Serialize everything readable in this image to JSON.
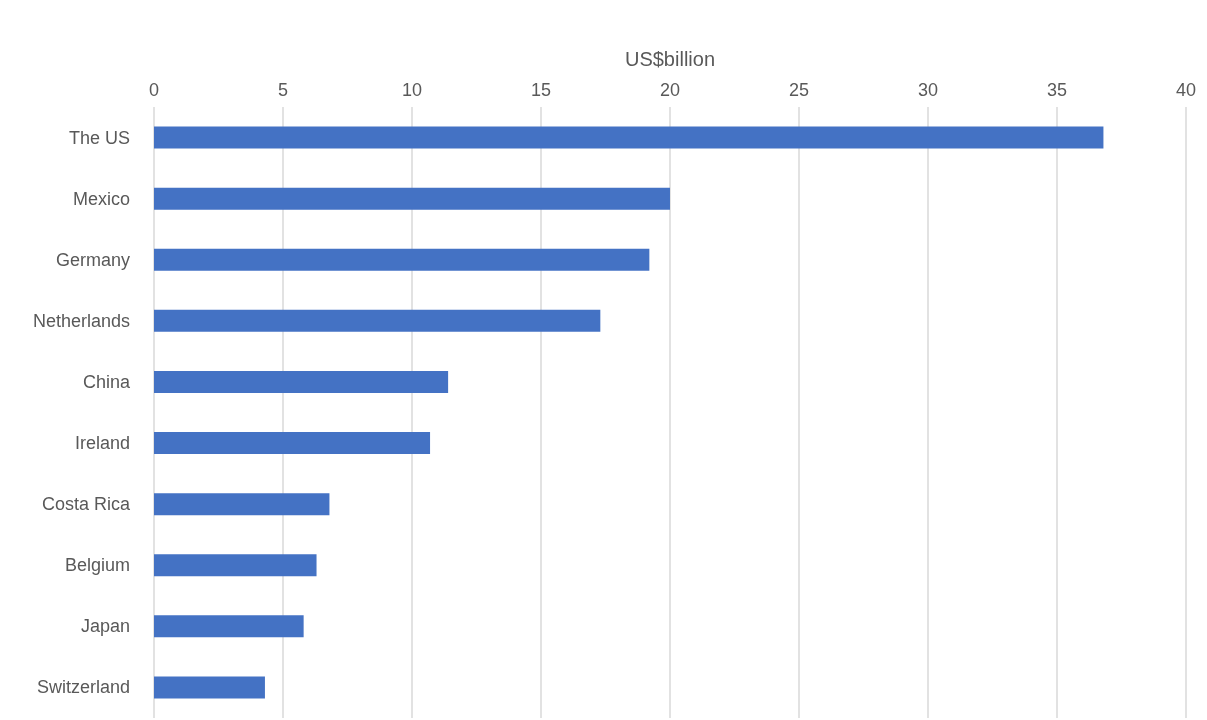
{
  "chart_data": {
    "type": "bar",
    "orientation": "horizontal",
    "xlabel": "US$billion",
    "categories": [
      "The US",
      "Mexico",
      "Germany",
      "Netherlands",
      "China",
      "Ireland",
      "Costa Rica",
      "Belgium",
      "Japan",
      "Switzerland"
    ],
    "values": [
      36.8,
      20.0,
      19.2,
      17.3,
      11.4,
      10.7,
      6.8,
      6.3,
      5.8,
      4.3
    ],
    "color": "#4472c4",
    "xlim": [
      0,
      40
    ],
    "xticks": [
      0,
      5,
      10,
      15,
      20,
      25,
      30,
      35,
      40
    ],
    "grid": "x"
  }
}
